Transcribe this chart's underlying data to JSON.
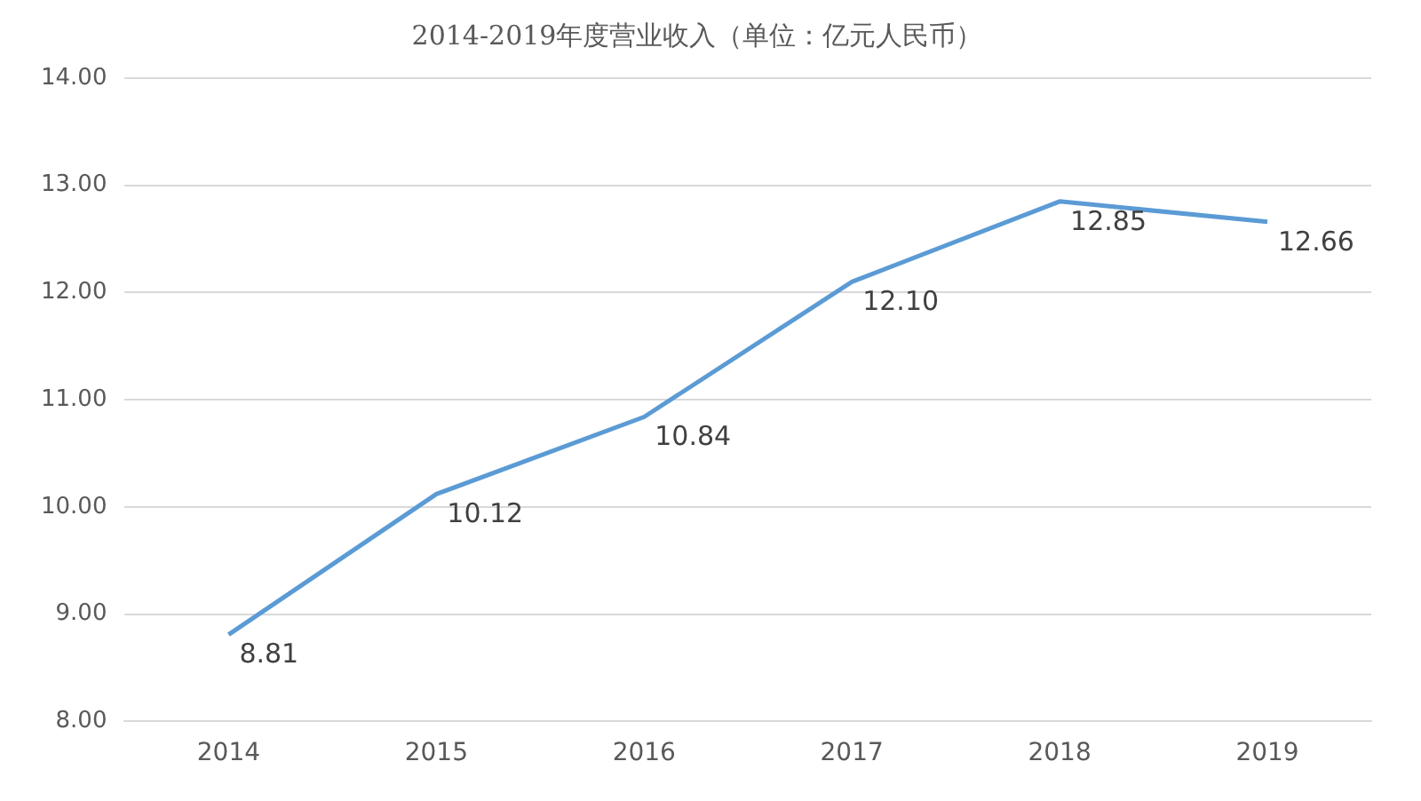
{
  "chart_data": {
    "type": "line",
    "title": "2014-2019年度营业收入（单位：亿元人民币）",
    "categories": [
      "2014",
      "2015",
      "2016",
      "2017",
      "2018",
      "2019"
    ],
    "series": [
      {
        "color": "#5b9bd5",
        "values": [
          8.81,
          10.12,
          10.84,
          12.1,
          12.85,
          12.66
        ],
        "value_labels": [
          "8.81",
          "10.12",
          "10.84",
          "12.10",
          "12.85",
          "12.66"
        ]
      }
    ],
    "ylim": [
      8,
      14
    ],
    "yticks": [
      {
        "value": 8,
        "label": "8.00"
      },
      {
        "value": 9,
        "label": "9.00"
      },
      {
        "value": 10,
        "label": "10.00"
      },
      {
        "value": 11,
        "label": "11.00"
      },
      {
        "value": 12,
        "label": "12.00"
      },
      {
        "value": 13,
        "label": "13.00"
      },
      {
        "value": 14,
        "label": "14.00"
      }
    ],
    "grid": "y",
    "legend": false,
    "marker": "none",
    "line_style": "solid"
  }
}
